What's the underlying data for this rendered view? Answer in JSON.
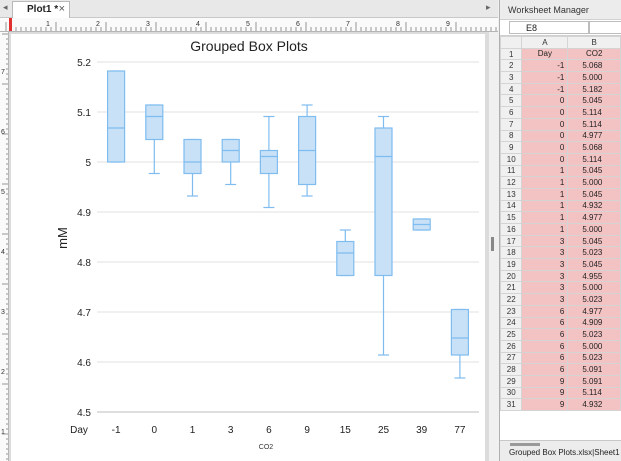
{
  "plot_window": {
    "tab_label": "Plot1 *",
    "close_glyph": "×",
    "ruler_top_labels": [
      "1",
      "2",
      "3",
      "4",
      "5",
      "6",
      "7",
      "8",
      "9"
    ],
    "ruler_left_labels": [
      "7",
      "6",
      "5",
      "4",
      "3",
      "2",
      "1"
    ]
  },
  "chart_data": {
    "type": "box",
    "title": "Grouped Box Plots",
    "ylabel": "mM",
    "xlabel": "CO2",
    "x_group_label": "Day",
    "ylim": [
      4.5,
      5.2
    ],
    "yticks": [
      "4.5",
      "4.6",
      "4.7",
      "4.8",
      "4.9",
      "5",
      "5.1",
      "5.2"
    ],
    "grid": true,
    "colors": {
      "box_fill": "#c8e1f7",
      "box_edge": "#7fbcef",
      "grid": "#e2e2e2"
    },
    "categories": [
      "-1",
      "0",
      "1",
      "3",
      "6",
      "9",
      "15",
      "25",
      "39",
      "77"
    ],
    "boxes": [
      {
        "category": "-1",
        "min": 5.0,
        "q1": 5.0,
        "median": 5.068,
        "q3": 5.182,
        "max": 5.182
      },
      {
        "category": "0",
        "min": 4.977,
        "q1": 5.045,
        "median": 5.091,
        "q3": 5.114,
        "max": 5.114
      },
      {
        "category": "1",
        "min": 4.932,
        "q1": 4.977,
        "median": 5.0,
        "q3": 5.045,
        "max": 5.045
      },
      {
        "category": "3",
        "min": 4.955,
        "q1": 5.0,
        "median": 5.023,
        "q3": 5.045,
        "max": 5.045
      },
      {
        "category": "6",
        "min": 4.909,
        "q1": 4.977,
        "median": 5.011,
        "q3": 5.023,
        "max": 5.091
      },
      {
        "category": "9",
        "min": 4.932,
        "q1": 4.955,
        "median": 5.023,
        "q3": 5.091,
        "max": 5.114
      },
      {
        "category": "15",
        "min": 4.773,
        "q1": 4.773,
        "median": 4.818,
        "q3": 4.841,
        "max": 4.864
      },
      {
        "category": "25",
        "min": 4.614,
        "q1": 4.773,
        "median": 5.011,
        "q3": 5.068,
        "max": 5.091
      },
      {
        "category": "39",
        "min": 4.864,
        "q1": 4.864,
        "median": 4.875,
        "q3": 4.886,
        "max": 4.886
      },
      {
        "category": "77",
        "min": 4.568,
        "q1": 4.614,
        "median": 4.648,
        "q3": 4.705,
        "max": 4.705
      }
    ]
  },
  "worksheet": {
    "panel_title": "Worksheet Manager",
    "cell_ref": "E8",
    "columns": [
      "A",
      "B"
    ],
    "col_names": [
      "Day",
      "CO2"
    ],
    "rows": [
      {
        "n": "2",
        "day": "-1",
        "co2": "5.068"
      },
      {
        "n": "3",
        "day": "-1",
        "co2": "5.000"
      },
      {
        "n": "4",
        "day": "-1",
        "co2": "5.182"
      },
      {
        "n": "5",
        "day": "0",
        "co2": "5.045"
      },
      {
        "n": "6",
        "day": "0",
        "co2": "5.114"
      },
      {
        "n": "7",
        "day": "0",
        "co2": "5.114"
      },
      {
        "n": "8",
        "day": "0",
        "co2": "4.977"
      },
      {
        "n": "9",
        "day": "0",
        "co2": "5.068"
      },
      {
        "n": "10",
        "day": "0",
        "co2": "5.114"
      },
      {
        "n": "11",
        "day": "1",
        "co2": "5.045"
      },
      {
        "n": "12",
        "day": "1",
        "co2": "5.000"
      },
      {
        "n": "13",
        "day": "1",
        "co2": "5.045"
      },
      {
        "n": "14",
        "day": "1",
        "co2": "4.932"
      },
      {
        "n": "15",
        "day": "1",
        "co2": "4.977"
      },
      {
        "n": "16",
        "day": "1",
        "co2": "5.000"
      },
      {
        "n": "17",
        "day": "3",
        "co2": "5.045"
      },
      {
        "n": "18",
        "day": "3",
        "co2": "5.023"
      },
      {
        "n": "19",
        "day": "3",
        "co2": "5.045"
      },
      {
        "n": "20",
        "day": "3",
        "co2": "4.955"
      },
      {
        "n": "21",
        "day": "3",
        "co2": "5.000"
      },
      {
        "n": "22",
        "day": "3",
        "co2": "5.023"
      },
      {
        "n": "23",
        "day": "6",
        "co2": "4.977"
      },
      {
        "n": "24",
        "day": "6",
        "co2": "4.909"
      },
      {
        "n": "25",
        "day": "6",
        "co2": "5.023"
      },
      {
        "n": "26",
        "day": "6",
        "co2": "5.000"
      },
      {
        "n": "27",
        "day": "6",
        "co2": "5.023"
      },
      {
        "n": "28",
        "day": "6",
        "co2": "5.091"
      },
      {
        "n": "29",
        "day": "9",
        "co2": "5.091"
      },
      {
        "n": "30",
        "day": "9",
        "co2": "5.114"
      },
      {
        "n": "31",
        "day": "9",
        "co2": "4.932"
      }
    ],
    "sheet_tab": "Grouped Box Plots.xlsx|Sheet1 *"
  }
}
